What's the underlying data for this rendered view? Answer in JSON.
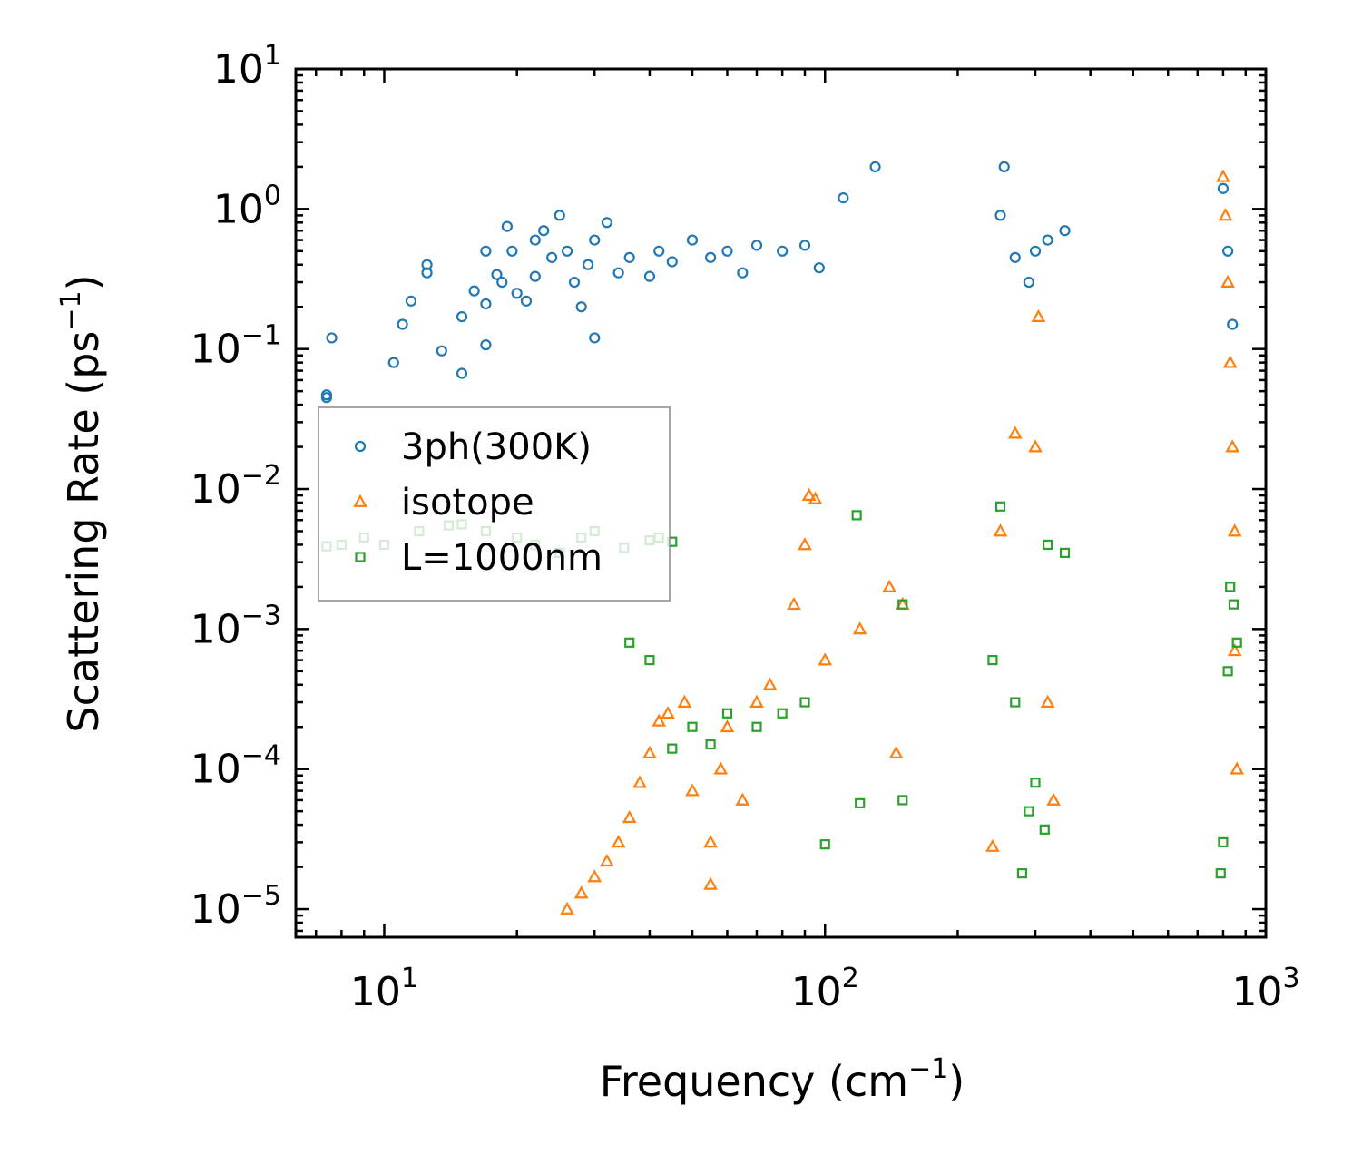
{
  "chart_data": {
    "type": "scatter",
    "title": "",
    "xlabel": "Frequency (cm",
    "xlabel_sup": "−1",
    "xlabel_end": ")",
    "ylabel": "Scattering Rate (ps",
    "ylabel_sup": "−1",
    "ylabel_end": ")",
    "xscale": "log",
    "yscale": "log",
    "xlim": [
      6.3,
      1000
    ],
    "ylim": [
      6.3e-06,
      10
    ],
    "grid": false,
    "legend_position": "center-left",
    "x_ticks": [
      {
        "value": 10,
        "base": "10",
        "exp": "1"
      },
      {
        "value": 100,
        "base": "10",
        "exp": "2"
      },
      {
        "value": 1000,
        "base": "10",
        "exp": "3"
      }
    ],
    "y_ticks": [
      {
        "value": 10,
        "base": "10",
        "exp": "1"
      },
      {
        "value": 1,
        "base": "10",
        "exp": "0"
      },
      {
        "value": 0.1,
        "base": "10",
        "exp": "−1"
      },
      {
        "value": 0.01,
        "base": "10",
        "exp": "−2"
      },
      {
        "value": 0.001,
        "base": "10",
        "exp": "−3"
      },
      {
        "value": 0.0001,
        "base": "10",
        "exp": "−4"
      },
      {
        "value": 1e-05,
        "base": "10",
        "exp": "−5"
      }
    ],
    "series": [
      {
        "name": "3ph(300K)",
        "marker": "circle",
        "color": "#1f77b4",
        "points": [
          [
            7.4,
            0.047
          ],
          [
            7.4,
            0.045
          ],
          [
            7.6,
            0.12
          ],
          [
            10.5,
            0.08
          ],
          [
            11,
            0.15
          ],
          [
            11.5,
            0.22
          ],
          [
            12.5,
            0.4
          ],
          [
            12.5,
            0.35
          ],
          [
            13.5,
            0.097
          ],
          [
            15,
            0.17
          ],
          [
            15,
            0.067
          ],
          [
            16,
            0.26
          ],
          [
            17,
            0.21
          ],
          [
            17,
            0.5
          ],
          [
            17,
            0.107
          ],
          [
            18,
            0.34
          ],
          [
            18.5,
            0.3
          ],
          [
            19,
            0.75
          ],
          [
            19.5,
            0.5
          ],
          [
            20,
            0.25
          ],
          [
            21,
            0.22
          ],
          [
            22,
            0.33
          ],
          [
            22,
            0.6
          ],
          [
            23,
            0.7
          ],
          [
            24,
            0.45
          ],
          [
            25,
            0.9
          ],
          [
            26,
            0.5
          ],
          [
            27,
            0.3
          ],
          [
            28,
            0.2
          ],
          [
            29,
            0.4
          ],
          [
            30,
            0.12
          ],
          [
            30,
            0.6
          ],
          [
            32,
            0.8
          ],
          [
            34,
            0.35
          ],
          [
            36,
            0.45
          ],
          [
            40,
            0.33
          ],
          [
            42,
            0.5
          ],
          [
            45,
            0.42
          ],
          [
            50,
            0.6
          ],
          [
            55,
            0.45
          ],
          [
            60,
            0.5
          ],
          [
            65,
            0.35
          ],
          [
            70,
            0.55
          ],
          [
            80,
            0.5
          ],
          [
            90,
            0.55
          ],
          [
            97,
            0.38
          ],
          [
            110,
            1.2
          ],
          [
            130,
            2.0
          ],
          [
            250,
            0.9
          ],
          [
            255,
            2.0
          ],
          [
            270,
            0.45
          ],
          [
            290,
            0.3
          ],
          [
            300,
            0.5
          ],
          [
            320,
            0.6
          ],
          [
            350,
            0.7
          ],
          [
            800,
            1.4
          ],
          [
            820,
            0.5
          ],
          [
            840,
            0.15
          ]
        ]
      },
      {
        "name": "isotope",
        "marker": "triangle",
        "color": "#ff7f0e",
        "points": [
          [
            26,
            1e-05
          ],
          [
            28,
            1.3e-05
          ],
          [
            30,
            1.7e-05
          ],
          [
            32,
            2.2e-05
          ],
          [
            34,
            3e-05
          ],
          [
            36,
            4.5e-05
          ],
          [
            38,
            8e-05
          ],
          [
            40,
            0.00013
          ],
          [
            42,
            0.00022
          ],
          [
            44,
            0.00025
          ],
          [
            48,
            0.0003
          ],
          [
            50,
            7e-05
          ],
          [
            55,
            1.5e-05
          ],
          [
            55,
            3e-05
          ],
          [
            58,
            0.0001
          ],
          [
            60,
            0.0002
          ],
          [
            65,
            6e-05
          ],
          [
            70,
            0.0003
          ],
          [
            75,
            0.0004
          ],
          [
            85,
            0.0015
          ],
          [
            90,
            0.004
          ],
          [
            92,
            0.009
          ],
          [
            95,
            0.0085
          ],
          [
            100,
            0.0006
          ],
          [
            120,
            0.001
          ],
          [
            140,
            0.002
          ],
          [
            150,
            0.0015
          ],
          [
            145,
            0.00013
          ],
          [
            240,
            2.8e-05
          ],
          [
            250,
            0.005
          ],
          [
            270,
            0.025
          ],
          [
            300,
            0.02
          ],
          [
            305,
            0.17
          ],
          [
            320,
            0.0003
          ],
          [
            330,
            6e-05
          ],
          [
            800,
            1.7
          ],
          [
            810,
            0.9
          ],
          [
            820,
            0.3
          ],
          [
            830,
            0.08
          ],
          [
            840,
            0.02
          ],
          [
            850,
            0.005
          ],
          [
            850,
            0.0007
          ],
          [
            860,
            0.0001
          ]
        ]
      },
      {
        "name": "L=1000nm",
        "marker": "square",
        "color": "#2ca02c",
        "points": [
          [
            7.4,
            0.0039
          ],
          [
            8,
            0.004
          ],
          [
            9,
            0.0045
          ],
          [
            10,
            0.004
          ],
          [
            12,
            0.005
          ],
          [
            14,
            0.0055
          ],
          [
            15,
            0.0056
          ],
          [
            17,
            0.005
          ],
          [
            20,
            0.0045
          ],
          [
            22,
            0.004
          ],
          [
            25,
            0.0035
          ],
          [
            28,
            0.0045
          ],
          [
            30,
            0.005
          ],
          [
            35,
            0.0038
          ],
          [
            40,
            0.0043
          ],
          [
            42,
            0.0045
          ],
          [
            45,
            0.0042
          ],
          [
            36,
            0.0008
          ],
          [
            40,
            0.0006
          ],
          [
            45,
            0.00014
          ],
          [
            50,
            0.0002
          ],
          [
            55,
            0.00015
          ],
          [
            60,
            0.00025
          ],
          [
            70,
            0.0002
          ],
          [
            80,
            0.00025
          ],
          [
            90,
            0.0003
          ],
          [
            100,
            2.9e-05
          ],
          [
            120,
            5.7e-05
          ],
          [
            118,
            0.0065
          ],
          [
            150,
            6e-05
          ],
          [
            150,
            0.0015
          ],
          [
            240,
            0.0006
          ],
          [
            250,
            0.0075
          ],
          [
            270,
            0.0003
          ],
          [
            280,
            1.8e-05
          ],
          [
            290,
            5e-05
          ],
          [
            300,
            8e-05
          ],
          [
            315,
            3.7e-05
          ],
          [
            320,
            0.004
          ],
          [
            350,
            0.0035
          ],
          [
            790,
            1.8e-05
          ],
          [
            800,
            3e-05
          ],
          [
            820,
            0.0005
          ],
          [
            830,
            0.002
          ],
          [
            845,
            0.0015
          ],
          [
            860,
            0.0008
          ]
        ]
      }
    ],
    "legend": [
      {
        "label": "3ph(300K)",
        "marker": "circle",
        "color": "#1f77b4"
      },
      {
        "label": "isotope",
        "marker": "triangle",
        "color": "#ff7f0e"
      },
      {
        "label": "L=1000nm",
        "marker": "square",
        "color": "#2ca02c"
      }
    ]
  }
}
